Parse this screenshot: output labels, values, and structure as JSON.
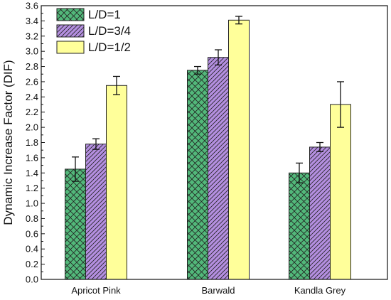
{
  "chart_data": {
    "type": "bar",
    "title": "",
    "xlabel": "",
    "ylabel": "Dynamic Increase Factor (DIF)",
    "categories": [
      "Apricot Pink",
      "Barwald",
      "Kandla Grey"
    ],
    "ylim": [
      0.0,
      3.6
    ],
    "yticks": [
      "0.0",
      "0.2",
      "0.4",
      "0.6",
      "0.8",
      "1.0",
      "1.2",
      "1.4",
      "1.6",
      "1.8",
      "2.0",
      "2.2",
      "2.4",
      "2.6",
      "2.8",
      "3.0",
      "3.2",
      "3.4",
      "3.6"
    ],
    "grid": false,
    "legend_position": "top-left",
    "series": [
      {
        "name": "L/D=1",
        "values": [
          1.45,
          2.75,
          1.4
        ],
        "errors": [
          0.16,
          0.05,
          0.13
        ],
        "color": "#52b87a",
        "pattern": "crosshatch"
      },
      {
        "name": "L/D=3/4",
        "values": [
          1.78,
          2.92,
          1.74
        ],
        "errors": [
          0.07,
          0.1,
          0.06
        ],
        "color": "#b48fe0",
        "pattern": "diagonal"
      },
      {
        "name": "L/D=1/2",
        "values": [
          2.55,
          3.41,
          2.3
        ],
        "errors": [
          0.12,
          0.05,
          0.3
        ],
        "color": "#ffff9a",
        "pattern": "none"
      }
    ]
  }
}
